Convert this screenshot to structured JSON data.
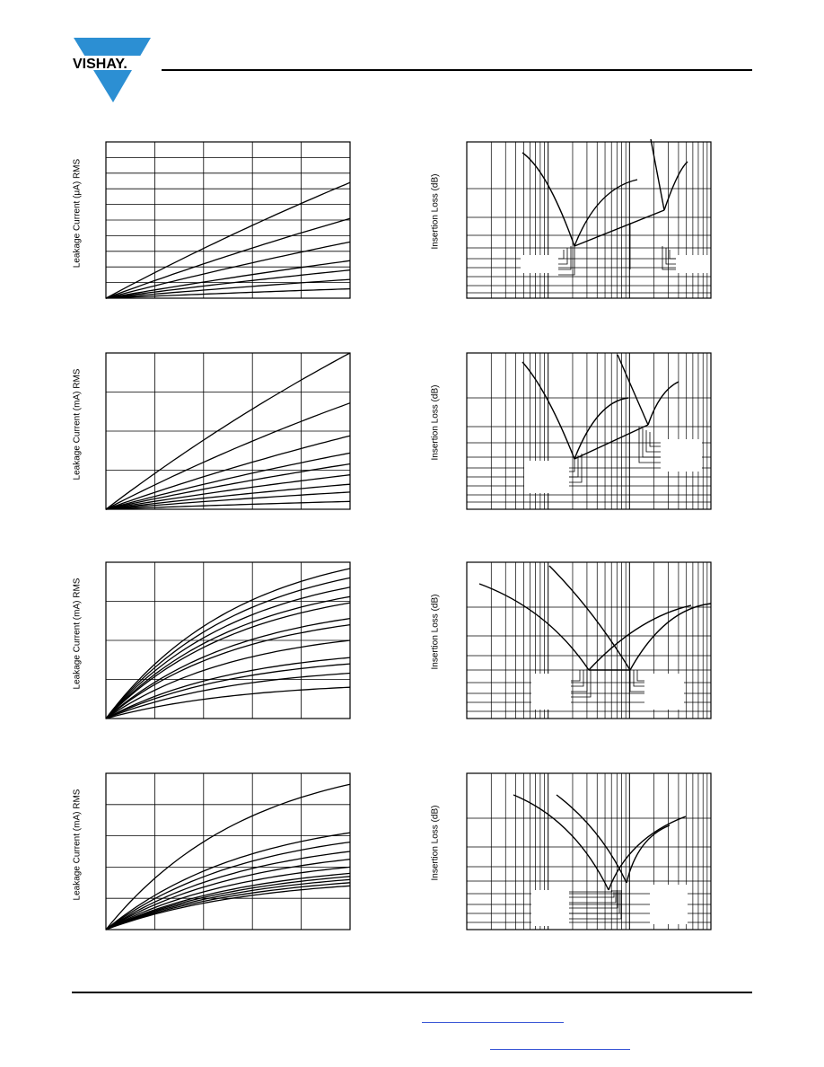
{
  "header": {
    "brand": "VISHAY."
  },
  "left_charts": [
    {
      "id": "L1",
      "ylabel": "Leakage Current (μA) RMS",
      "curve_count": 7
    },
    {
      "id": "L2",
      "ylabel": "Leakage Current (mA) RMS",
      "curve_count": 9
    },
    {
      "id": "L3",
      "ylabel": "Leakage Current (mA) RMS",
      "curve_count": 12
    },
    {
      "id": "L4",
      "ylabel": "Leakage Current (mA) RMS",
      "curve_count": 11
    }
  ],
  "right_charts": [
    {
      "id": "R1",
      "ylabel": "Insertion Loss (dB)"
    },
    {
      "id": "R2",
      "ylabel": "Insertion Loss (dB)"
    },
    {
      "id": "R3",
      "ylabel": "Insertion Loss (dB)"
    },
    {
      "id": "R4",
      "ylabel": "Insertion Loss (dB)"
    }
  ],
  "colors": {
    "logo_blue": "#2c8fd3",
    "link_blue": "#3a57d6",
    "ink": "#000000"
  }
}
